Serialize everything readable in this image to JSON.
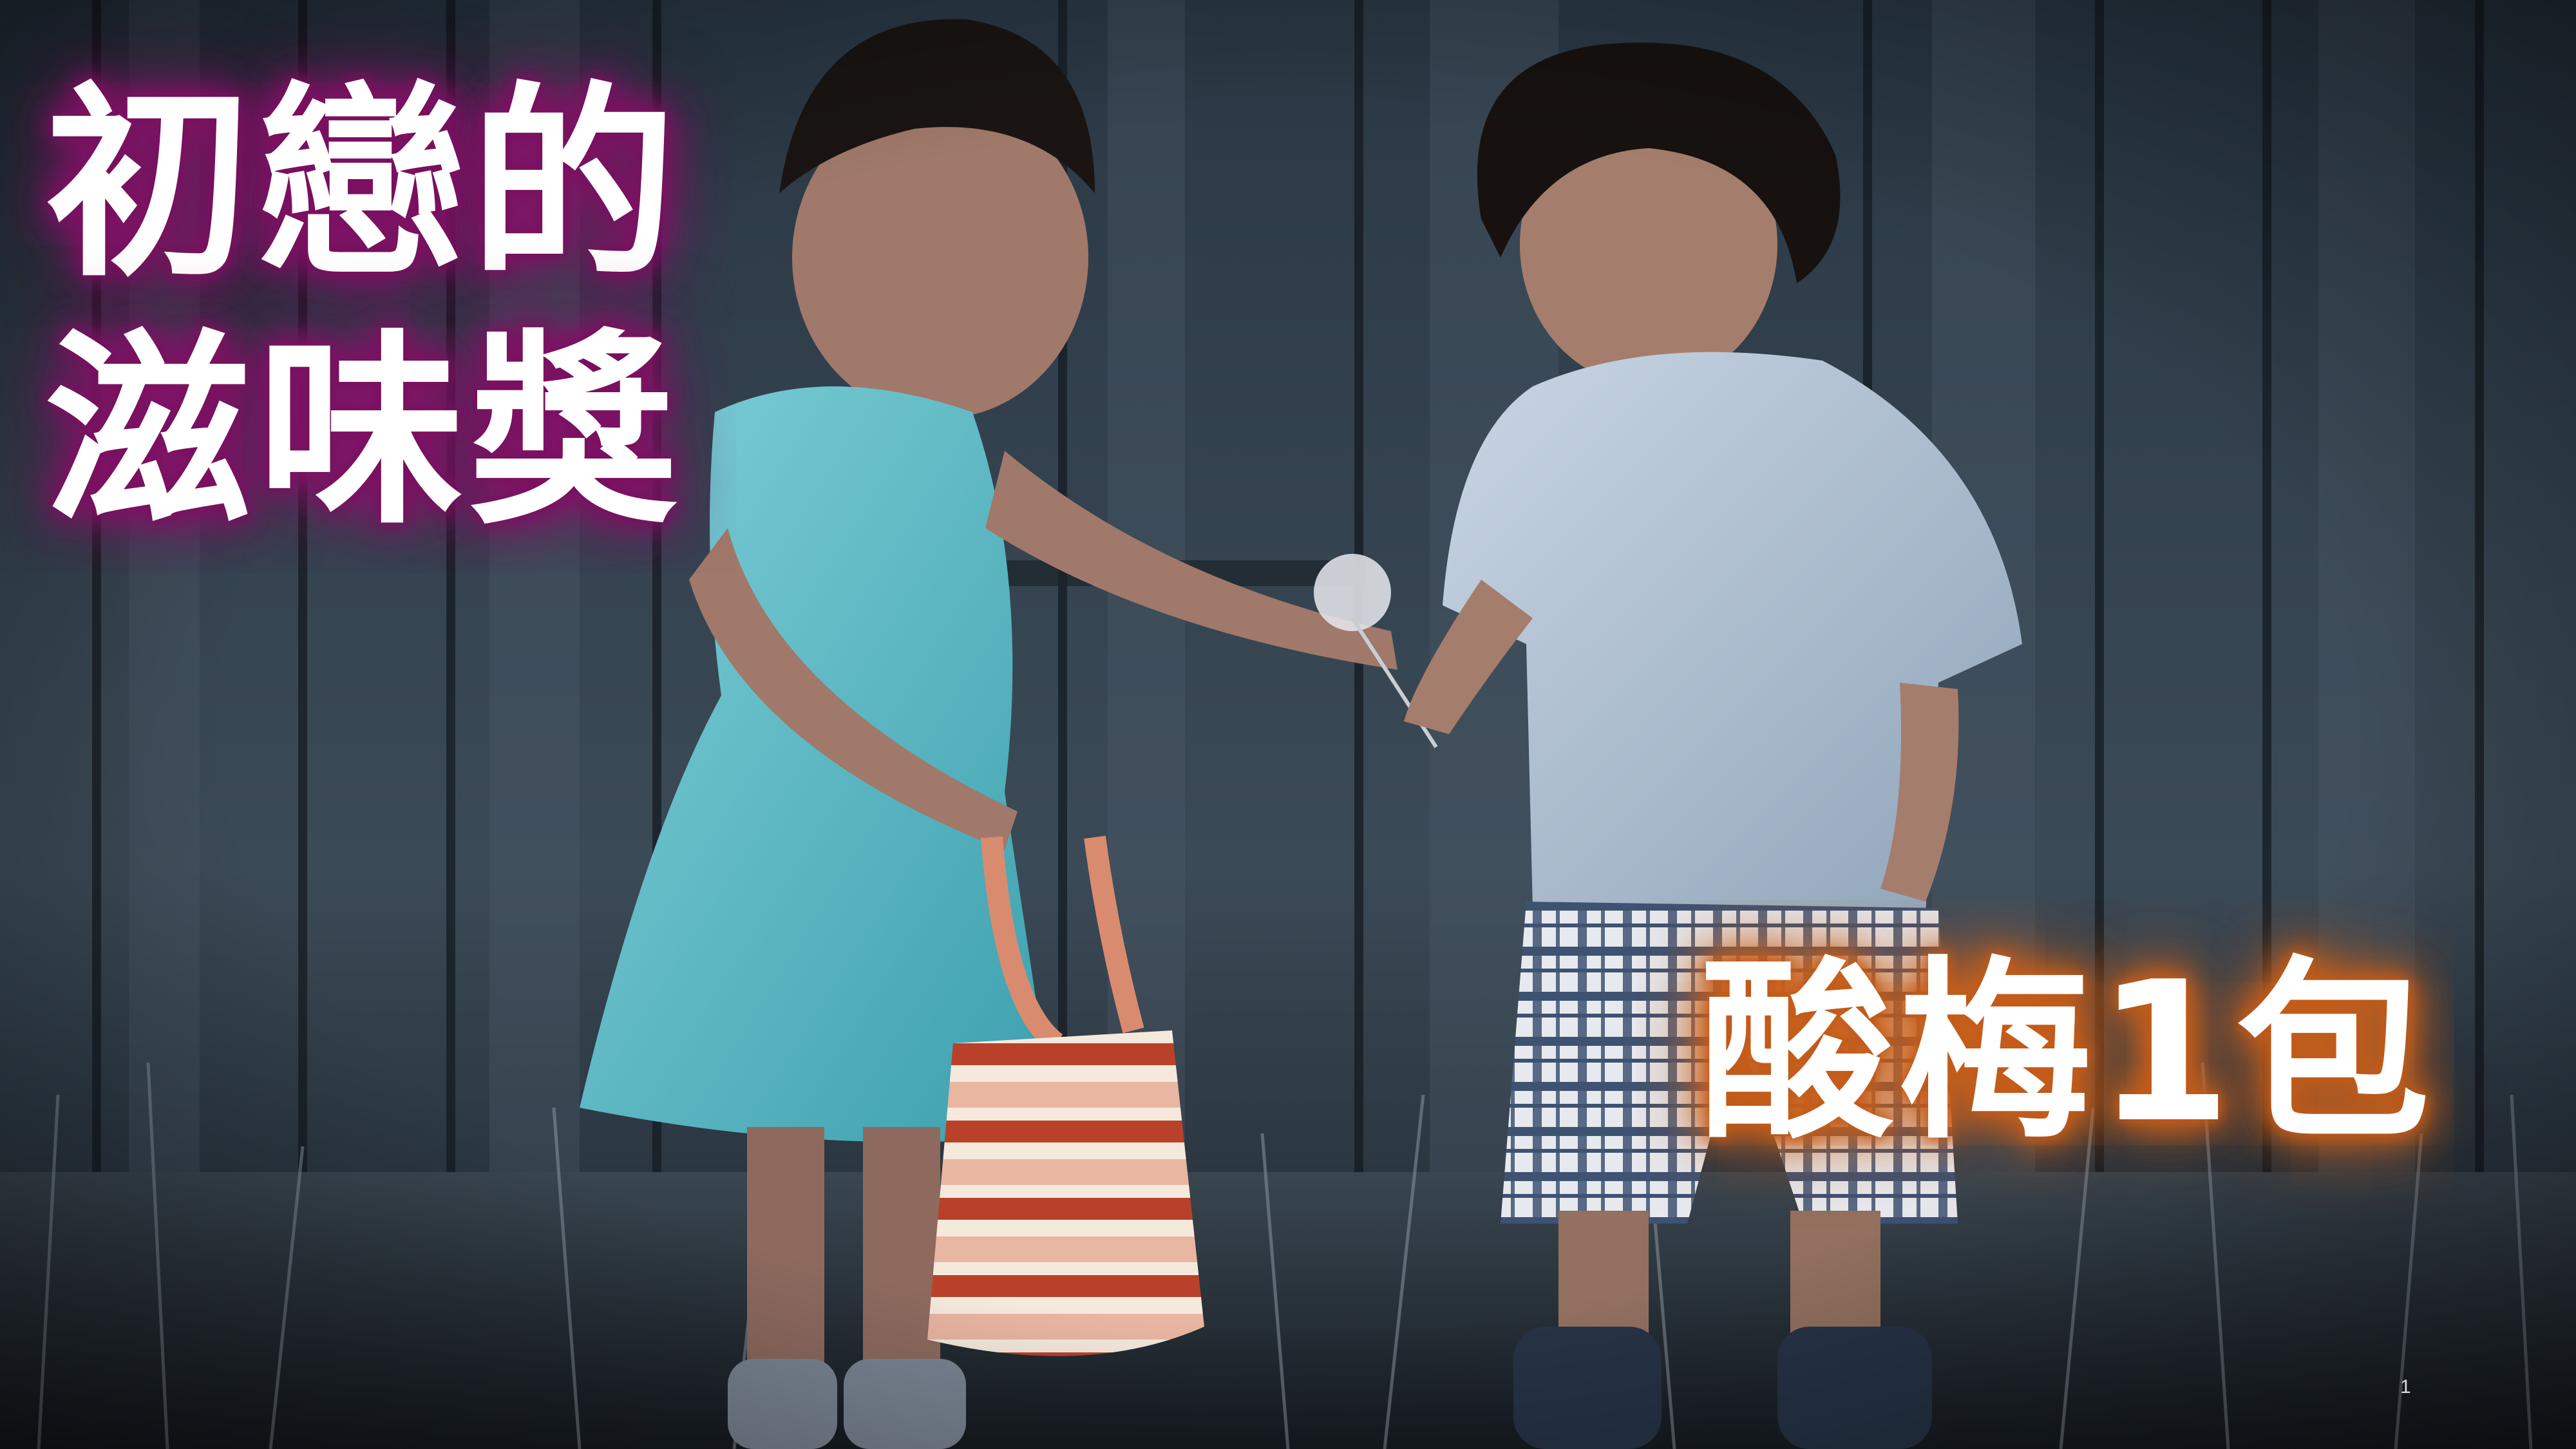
{
  "title": {
    "line1": "初戀的",
    "line2": "滋味獎"
  },
  "prize": "酸梅1包",
  "page_number": "1",
  "colors": {
    "title_glow": "#8c1670",
    "prize_glow": "#d4691e",
    "text": "#ffffff"
  }
}
